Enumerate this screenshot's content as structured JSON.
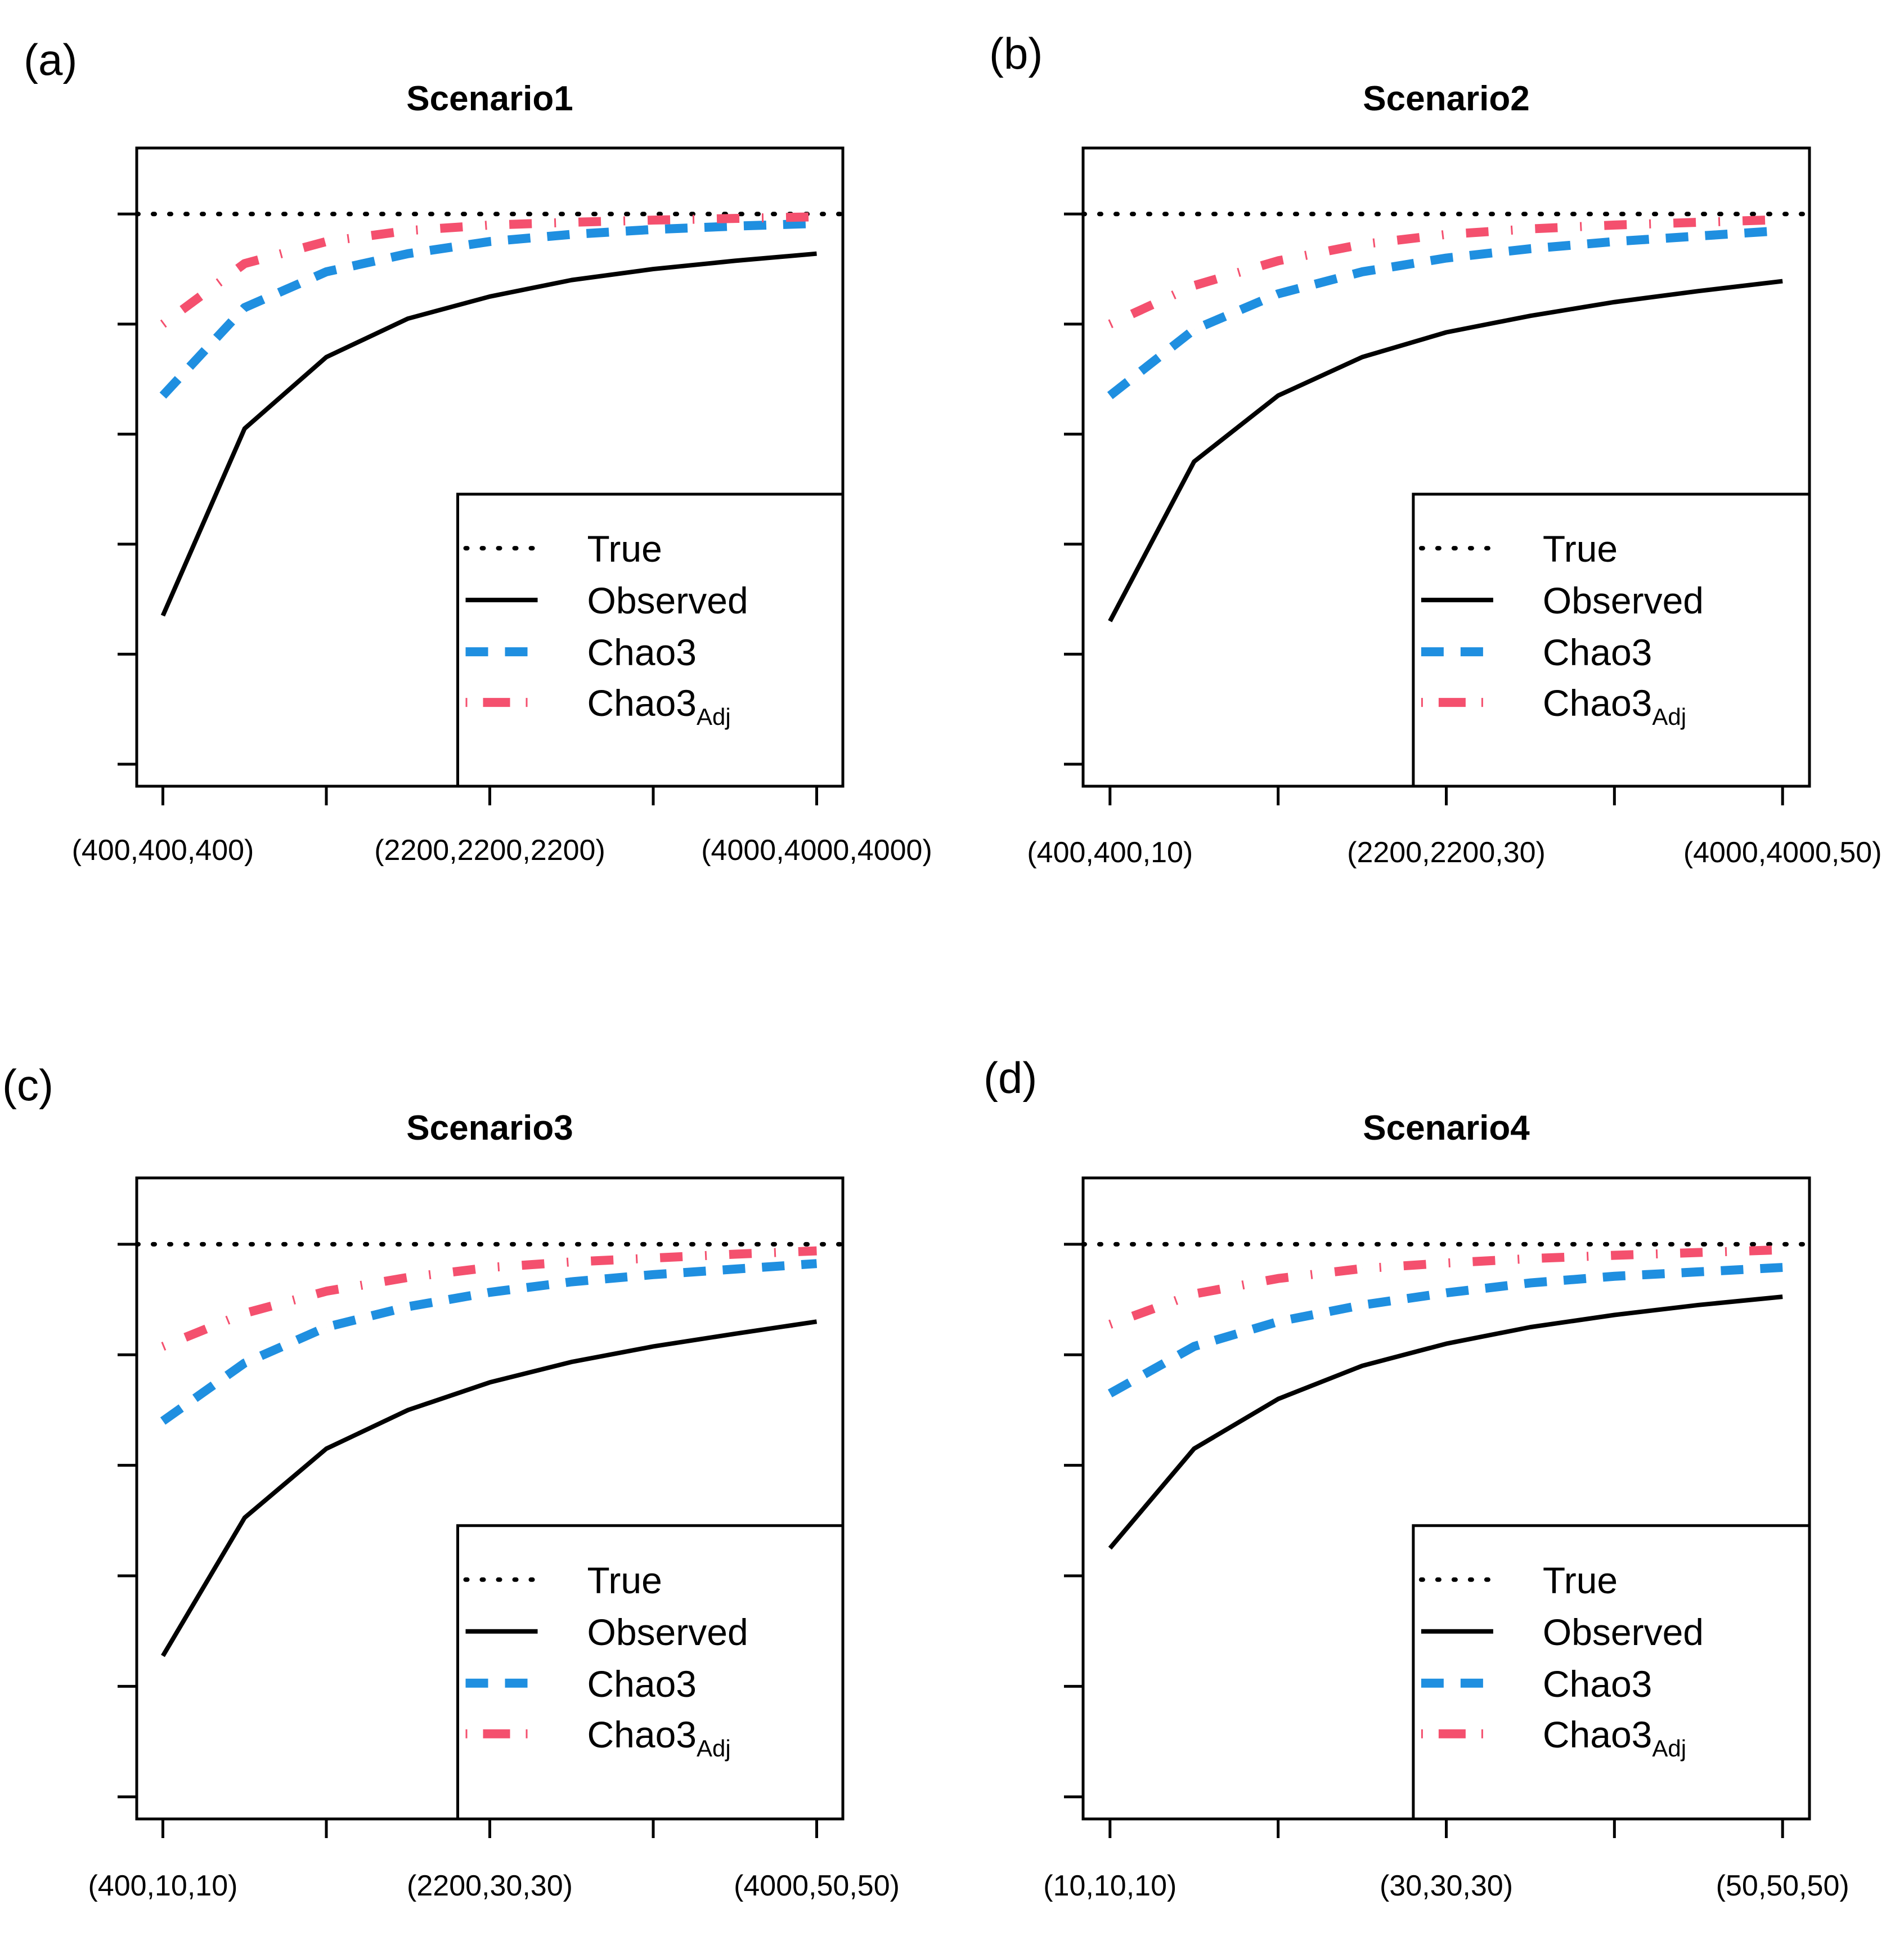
{
  "colors": {
    "true": "#000000",
    "observed": "#000000",
    "chao3": "#1f8fe0",
    "chao3_adj": "#f4506e"
  },
  "legend": {
    "true_label": "True",
    "observed_label": "Observed",
    "chao3_label": "Chao3",
    "chao3_adj_base": "Chao3",
    "chao3_adj_sub": "Adj"
  },
  "chart_data": [
    {
      "type": "line",
      "panel_label": "(a)",
      "title": "Scenario1",
      "xlabel": "",
      "ylabel": "",
      "x": [
        1,
        2,
        3,
        4,
        5,
        6,
        7,
        8,
        9
      ],
      "x_ticks": [
        1,
        3,
        5,
        7,
        9
      ],
      "x_tick_labels": [
        "(400,400,400)",
        "",
        "(2200,2200,2200)",
        "",
        "(4000,4000,4000)"
      ],
      "y_ticks": [
        0,
        0.2,
        0.4,
        0.6,
        0.8,
        1.0
      ],
      "ylim": [
        -0.04,
        1.12
      ],
      "legend_position": "bottom-right",
      "true_value": 1.0,
      "series": [
        {
          "name": "Observed",
          "values": [
            0.27,
            0.61,
            0.74,
            0.81,
            0.85,
            0.88,
            0.9,
            0.915,
            0.928
          ]
        },
        {
          "name": "Chao3",
          "values": [
            0.67,
            0.83,
            0.895,
            0.928,
            0.95,
            0.963,
            0.972,
            0.978,
            0.983
          ]
        },
        {
          "name": "Chao3Adj",
          "values": [
            0.8,
            0.91,
            0.95,
            0.97,
            0.98,
            0.985,
            0.989,
            0.992,
            0.995
          ]
        }
      ]
    },
    {
      "type": "line",
      "panel_label": "(b)",
      "title": "Scenario2",
      "xlabel": "",
      "ylabel": "",
      "x": [
        1,
        2,
        3,
        4,
        5,
        6,
        7,
        8,
        9
      ],
      "x_ticks": [
        1,
        3,
        5,
        7,
        9
      ],
      "x_tick_labels": [
        "(400,400,10)",
        "",
        "(2200,2200,30)",
        "",
        "(4000,4000,50)"
      ],
      "y_ticks": [
        0,
        0.2,
        0.4,
        0.6,
        0.8,
        1.0
      ],
      "ylim": [
        -0.04,
        1.12
      ],
      "legend_position": "bottom-right",
      "true_value": 1.0,
      "series": [
        {
          "name": "Observed",
          "values": [
            0.26,
            0.55,
            0.67,
            0.74,
            0.785,
            0.815,
            0.84,
            0.86,
            0.878
          ]
        },
        {
          "name": "Chao3",
          "values": [
            0.67,
            0.79,
            0.855,
            0.895,
            0.92,
            0.937,
            0.95,
            0.96,
            0.97
          ]
        },
        {
          "name": "Chao3Adj",
          "values": [
            0.8,
            0.87,
            0.915,
            0.945,
            0.963,
            0.973,
            0.98,
            0.985,
            0.99
          ]
        }
      ]
    },
    {
      "type": "line",
      "panel_label": "(c)",
      "title": "Scenario3",
      "xlabel": "",
      "ylabel": "",
      "x": [
        1,
        2,
        3,
        4,
        5,
        6,
        7,
        8,
        9
      ],
      "x_ticks": [
        1,
        3,
        5,
        7,
        9
      ],
      "x_tick_labels": [
        "(400,10,10)",
        "",
        "(2200,30,30)",
        "",
        "(4000,50,50)"
      ],
      "y_ticks": [
        0,
        0.2,
        0.4,
        0.6,
        0.8,
        1.0
      ],
      "ylim": [
        -0.04,
        1.12
      ],
      "legend_position": "bottom-right",
      "true_value": 1.0,
      "series": [
        {
          "name": "Observed",
          "values": [
            0.255,
            0.505,
            0.63,
            0.7,
            0.75,
            0.787,
            0.815,
            0.838,
            0.86
          ]
        },
        {
          "name": "Chao3",
          "values": [
            0.68,
            0.785,
            0.85,
            0.887,
            0.913,
            0.932,
            0.945,
            0.955,
            0.965
          ]
        },
        {
          "name": "Chao3Adj",
          "values": [
            0.815,
            0.875,
            0.915,
            0.94,
            0.958,
            0.968,
            0.975,
            0.982,
            0.988
          ]
        }
      ]
    },
    {
      "type": "line",
      "panel_label": "(d)",
      "title": "Scenario4",
      "xlabel": "",
      "ylabel": "",
      "x": [
        1,
        2,
        3,
        4,
        5,
        6,
        7,
        8,
        9
      ],
      "x_ticks": [
        1,
        3,
        5,
        7,
        9
      ],
      "x_tick_labels": [
        "(10,10,10)",
        "",
        "(30,30,30)",
        "",
        "(50,50,50)"
      ],
      "y_ticks": [
        0,
        0.2,
        0.4,
        0.6,
        0.8,
        1.0
      ],
      "ylim": [
        -0.04,
        1.12
      ],
      "legend_position": "bottom-right",
      "true_value": 1.0,
      "series": [
        {
          "name": "Observed",
          "values": [
            0.45,
            0.63,
            0.72,
            0.78,
            0.82,
            0.85,
            0.872,
            0.89,
            0.905
          ]
        },
        {
          "name": "Chao3",
          "values": [
            0.73,
            0.815,
            0.86,
            0.89,
            0.912,
            0.93,
            0.942,
            0.95,
            0.958
          ]
        },
        {
          "name": "Chao3Adj",
          "values": [
            0.855,
            0.91,
            0.938,
            0.956,
            0.966,
            0.974,
            0.98,
            0.985,
            0.99
          ]
        }
      ]
    }
  ]
}
